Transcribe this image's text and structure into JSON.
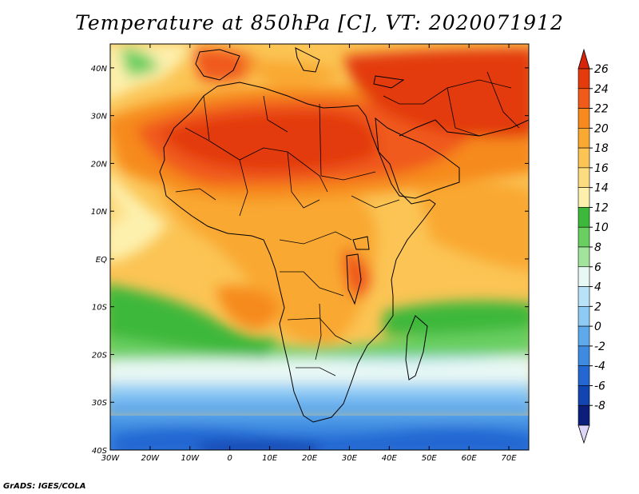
{
  "title": "Temperature at 850hPa [C], VT: 2020071912",
  "credit": "GrADS: IGES/COLA",
  "map": {
    "lon_range": [
      -30,
      75
    ],
    "lat_range": [
      -40,
      45
    ],
    "x_ticks": [
      "30W",
      "20W",
      "10W",
      "0",
      "10E",
      "20E",
      "30E",
      "40E",
      "50E",
      "60E",
      "70E"
    ],
    "y_ticks": [
      "40N",
      "30N",
      "20N",
      "10N",
      "EQ",
      "10S",
      "20S",
      "30S",
      "40S"
    ]
  },
  "colorbar": {
    "labels": [
      "26",
      "24",
      "22",
      "20",
      "18",
      "16",
      "14",
      "12",
      "10",
      "8",
      "6",
      "4",
      "2",
      "0",
      "-2",
      "-4",
      "-6",
      "-8"
    ],
    "colors": [
      "#e33b0c",
      "#f05a1a",
      "#f68a1e",
      "#f9a832",
      "#fbc454",
      "#fddc80",
      "#fdf0ad",
      "#3cb83a",
      "#69cf60",
      "#a2e49c",
      "#e8f8f4",
      "#b8e2f8",
      "#8ecaf4",
      "#5ea8ec",
      "#3d8ae0",
      "#2466d2",
      "#1245b0",
      "#0b1f7a"
    ],
    "top_arrow_color": "#d8250a",
    "bottom_arrow_color": "#ddd6f8"
  }
}
